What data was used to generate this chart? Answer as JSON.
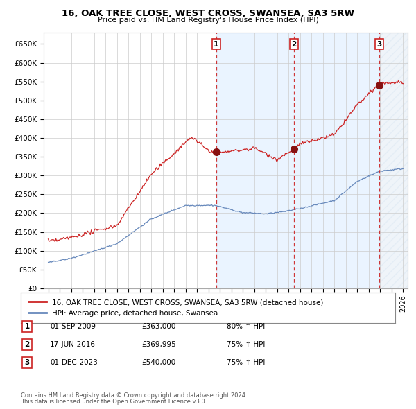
{
  "title": "16, OAK TREE CLOSE, WEST CROSS, SWANSEA, SA3 5RW",
  "subtitle": "Price paid vs. HM Land Registry's House Price Index (HPI)",
  "ylim": [
    0,
    680000
  ],
  "yticks": [
    0,
    50000,
    100000,
    150000,
    200000,
    250000,
    300000,
    350000,
    400000,
    450000,
    500000,
    550000,
    600000,
    650000
  ],
  "ytick_labels": [
    "£0",
    "£50K",
    "£100K",
    "£150K",
    "£200K",
    "£250K",
    "£300K",
    "£350K",
    "£400K",
    "£450K",
    "£500K",
    "£550K",
    "£600K",
    "£650K"
  ],
  "background_color": "#ffffff",
  "plot_bg": "#ffffff",
  "hpi_color": "#6688bb",
  "price_color": "#cc2222",
  "vline_color": "#cc2222",
  "marker_color": "#881111",
  "shade_color": "#ddeeff",
  "hatch_color": "#ccddee",
  "transactions": [
    {
      "label": "1",
      "date_x": 2009.67,
      "price": 363000,
      "pct": "80%",
      "date_str": "01-SEP-2009"
    },
    {
      "label": "2",
      "date_x": 2016.46,
      "price": 369995,
      "pct": "75%",
      "date_str": "17-JUN-2016"
    },
    {
      "label": "3",
      "date_x": 2023.92,
      "price": 540000,
      "pct": "75%",
      "date_str": "01-DEC-2023"
    }
  ],
  "legend_property_label": "16, OAK TREE CLOSE, WEST CROSS, SWANSEA, SA3 5RW (detached house)",
  "legend_hpi_label": "HPI: Average price, detached house, Swansea",
  "footer1": "Contains HM Land Registry data © Crown copyright and database right 2024.",
  "footer2": "This data is licensed under the Open Government Licence v3.0.",
  "xlim_left": 1994.6,
  "xlim_right": 2026.4
}
